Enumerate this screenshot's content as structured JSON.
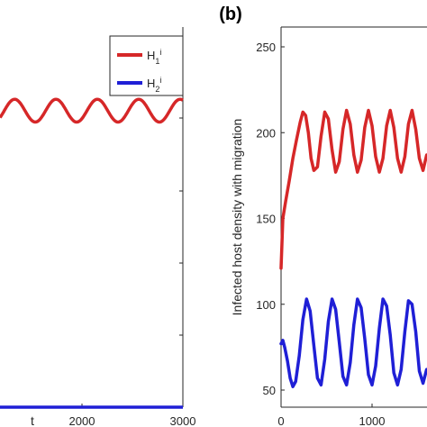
{
  "colors": {
    "series1": "#d62728",
    "series2": "#1f1fd6",
    "axis": "#262626"
  },
  "panel_b_label": "(b)",
  "chart_data": [
    {
      "type": "line",
      "panel": "a",
      "xlabel": "t",
      "ylabel": "",
      "xlim": [
        0,
        3000
      ],
      "xticks": [
        2000,
        3000
      ],
      "xtick_labels": [
        "2000",
        "3000"
      ],
      "legend": {
        "placement": "top-right",
        "entries": [
          "H1i",
          "H2i"
        ]
      },
      "series": [
        {
          "name": "H1i",
          "color": "#d62728",
          "level_fraction": 0.78,
          "amplitude_fraction": 0.03,
          "period": 410
        },
        {
          "name": "H2i",
          "color": "#1f1fd6",
          "level_fraction": 0.0,
          "amplitude_fraction": 0.0,
          "period": 0
        }
      ]
    },
    {
      "type": "line",
      "panel": "b",
      "xlabel": "",
      "ylabel": "Infected host density with migration",
      "xlim": [
        0,
        1600
      ],
      "ylim": [
        40,
        260
      ],
      "xticks": [
        0,
        1000
      ],
      "xtick_labels": [
        "0",
        "1000"
      ],
      "yticks": [
        50,
        100,
        150,
        200,
        250
      ],
      "ytick_labels": [
        "50",
        "100",
        "150",
        "200",
        "250"
      ],
      "series": [
        {
          "name": "H1i",
          "color": "#d62728",
          "x": [
            0,
            20,
            50,
            90,
            130,
            170,
            210,
            240,
            270,
            300,
            330,
            360,
            400,
            440,
            480,
            520,
            560,
            600,
            640,
            680,
            720,
            760,
            800,
            840,
            880,
            920,
            960,
            1000,
            1040,
            1080,
            1120,
            1160,
            1200,
            1240,
            1280,
            1320,
            1360,
            1400,
            1440,
            1480,
            1520,
            1560,
            1600
          ],
          "y": [
            121,
            150,
            160,
            172,
            185,
            196,
            206,
            212,
            210,
            200,
            185,
            178,
            180,
            198,
            212,
            208,
            190,
            177,
            183,
            202,
            213,
            205,
            187,
            177,
            184,
            203,
            213,
            204,
            186,
            177,
            185,
            204,
            213,
            203,
            185,
            177,
            186,
            205,
            213,
            202,
            185,
            178,
            187
          ]
        },
        {
          "name": "H2i",
          "color": "#1f1fd6",
          "x": [
            0,
            20,
            40,
            70,
            100,
            130,
            160,
            200,
            240,
            280,
            320,
            360,
            400,
            440,
            480,
            520,
            560,
            600,
            640,
            680,
            720,
            760,
            800,
            840,
            880,
            920,
            960,
            1000,
            1040,
            1080,
            1120,
            1160,
            1200,
            1240,
            1280,
            1320,
            1360,
            1400,
            1440,
            1480,
            1520,
            1560,
            1600
          ],
          "y": [
            77,
            79,
            75,
            67,
            57,
            52,
            55,
            70,
            91,
            103,
            96,
            76,
            57,
            53,
            68,
            90,
            103,
            97,
            78,
            58,
            53,
            66,
            88,
            103,
            98,
            80,
            59,
            53,
            64,
            86,
            103,
            99,
            82,
            60,
            53,
            62,
            84,
            102,
            100,
            84,
            61,
            54,
            62
          ]
        }
      ]
    }
  ]
}
